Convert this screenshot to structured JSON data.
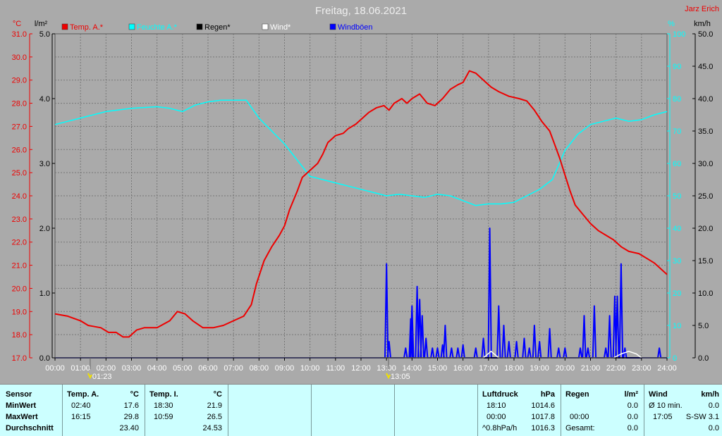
{
  "title": "Freitag, 18.06.2021",
  "station": "Jarz Erich",
  "axis_units": {
    "temp": "°C",
    "rain": "l/m²",
    "hum": "%",
    "wind": "km/h"
  },
  "legend": [
    {
      "label": "Temp. A.*",
      "color": "#ee0000"
    },
    {
      "label": "Feuchte A.*",
      "color": "#00ffff"
    },
    {
      "label": "Regen*",
      "color": "#000000"
    },
    {
      "label": "Wind*",
      "color": "#ffffff"
    },
    {
      "label": "Windböen",
      "color": "#0000ff"
    }
  ],
  "markers": [
    {
      "label": "01:23",
      "hour": 1.38
    },
    {
      "label": "13:05",
      "hour": 13.08
    }
  ],
  "chart_data": {
    "type": "line",
    "title": "Freitag, 18.06.2021",
    "x_label": "",
    "x_ticks": [
      "00:00",
      "01:00",
      "02:00",
      "03:00",
      "04:00",
      "05:00",
      "06:00",
      "07:00",
      "08:00",
      "09:00",
      "10:00",
      "11:00",
      "12:00",
      "13:00",
      "14:00",
      "15:00",
      "16:00",
      "17:00",
      "18:00",
      "19:00",
      "20:00",
      "21:00",
      "22:00",
      "23:00",
      "24:00"
    ],
    "x_range": [
      0,
      24
    ],
    "grid": true,
    "axes": {
      "temp": {
        "unit": "°C",
        "range": [
          17,
          31
        ],
        "ticks": [
          "17.0",
          "18.0",
          "19.0",
          "20.0",
          "21.0",
          "22.0",
          "23.0",
          "24.0",
          "25.0",
          "26.0",
          "27.0",
          "28.0",
          "29.0",
          "30.0",
          "31.0"
        ]
      },
      "rain": {
        "unit": "l/m²",
        "range": [
          0,
          5
        ],
        "ticks": [
          "0.0",
          "1.0",
          "2.0",
          "3.0",
          "4.0",
          "5.0"
        ]
      },
      "hum": {
        "unit": "%",
        "range": [
          0,
          100
        ],
        "ticks": [
          "0",
          "10",
          "20",
          "30",
          "40",
          "50",
          "60",
          "70",
          "80",
          "90",
          "100"
        ]
      },
      "wind": {
        "unit": "km/h",
        "range": [
          0,
          50
        ],
        "ticks": [
          "0.0",
          "5.0",
          "10.0",
          "15.0",
          "20.0",
          "25.0",
          "30.0",
          "35.0",
          "40.0",
          "45.0",
          "50.0"
        ]
      }
    },
    "series": [
      {
        "name": "Temp. A.*",
        "axis": "temp",
        "color": "#ee0000",
        "points": [
          [
            0,
            18.9
          ],
          [
            0.5,
            18.8
          ],
          [
            1,
            18.6
          ],
          [
            1.3,
            18.4
          ],
          [
            1.8,
            18.3
          ],
          [
            2.1,
            18.1
          ],
          [
            2.4,
            18.1
          ],
          [
            2.67,
            17.9
          ],
          [
            2.9,
            17.9
          ],
          [
            3.2,
            18.2
          ],
          [
            3.5,
            18.3
          ],
          [
            4,
            18.3
          ],
          [
            4.5,
            18.6
          ],
          [
            4.8,
            19.0
          ],
          [
            5.1,
            18.9
          ],
          [
            5.4,
            18.6
          ],
          [
            5.8,
            18.3
          ],
          [
            6.2,
            18.3
          ],
          [
            6.6,
            18.4
          ],
          [
            7,
            18.6
          ],
          [
            7.4,
            18.8
          ],
          [
            7.7,
            19.3
          ],
          [
            7.9,
            20.2
          ],
          [
            8.2,
            21.2
          ],
          [
            8.5,
            21.8
          ],
          [
            8.8,
            22.3
          ],
          [
            9.0,
            22.7
          ],
          [
            9.2,
            23.4
          ],
          [
            9.5,
            24.2
          ],
          [
            9.7,
            24.8
          ],
          [
            10,
            25.1
          ],
          [
            10.3,
            25.4
          ],
          [
            10.5,
            25.8
          ],
          [
            10.7,
            26.3
          ],
          [
            11,
            26.6
          ],
          [
            11.3,
            26.7
          ],
          [
            11.5,
            26.9
          ],
          [
            11.8,
            27.1
          ],
          [
            12,
            27.3
          ],
          [
            12.3,
            27.6
          ],
          [
            12.6,
            27.8
          ],
          [
            12.9,
            27.9
          ],
          [
            13.1,
            27.7
          ],
          [
            13.3,
            28.0
          ],
          [
            13.6,
            28.2
          ],
          [
            13.8,
            28.0
          ],
          [
            14.0,
            28.2
          ],
          [
            14.3,
            28.4
          ],
          [
            14.6,
            28.0
          ],
          [
            14.9,
            27.9
          ],
          [
            15.2,
            28.2
          ],
          [
            15.5,
            28.6
          ],
          [
            15.8,
            28.8
          ],
          [
            16,
            28.9
          ],
          [
            16.25,
            29.4
          ],
          [
            16.5,
            29.3
          ],
          [
            16.8,
            29.0
          ],
          [
            17.1,
            28.7
          ],
          [
            17.4,
            28.5
          ],
          [
            17.8,
            28.3
          ],
          [
            18.2,
            28.2
          ],
          [
            18.5,
            28.1
          ],
          [
            18.8,
            27.7
          ],
          [
            19.1,
            27.2
          ],
          [
            19.4,
            26.8
          ],
          [
            19.6,
            26.2
          ],
          [
            19.8,
            25.6
          ],
          [
            20,
            24.9
          ],
          [
            20.2,
            24.2
          ],
          [
            20.4,
            23.6
          ],
          [
            20.7,
            23.2
          ],
          [
            21,
            22.8
          ],
          [
            21.3,
            22.5
          ],
          [
            21.6,
            22.3
          ],
          [
            21.9,
            22.1
          ],
          [
            22.2,
            21.8
          ],
          [
            22.5,
            21.6
          ],
          [
            22.9,
            21.5
          ],
          [
            23.2,
            21.3
          ],
          [
            23.5,
            21.1
          ],
          [
            23.8,
            20.8
          ],
          [
            24,
            20.6
          ]
        ]
      },
      {
        "name": "Feuchte A.*",
        "axis": "hum",
        "color": "#00ffff",
        "points": [
          [
            0,
            72
          ],
          [
            1,
            74
          ],
          [
            2,
            76
          ],
          [
            3,
            77
          ],
          [
            4,
            77.5
          ],
          [
            4.5,
            77
          ],
          [
            5,
            76
          ],
          [
            5.5,
            78
          ],
          [
            6,
            79
          ],
          [
            6.5,
            79.5
          ],
          [
            7,
            79.5
          ],
          [
            7.5,
            79.5
          ],
          [
            8,
            74
          ],
          [
            8.5,
            70
          ],
          [
            9,
            66
          ],
          [
            9.5,
            61
          ],
          [
            10,
            56
          ],
          [
            10.5,
            55
          ],
          [
            11,
            54
          ],
          [
            11.5,
            53
          ],
          [
            12,
            52
          ],
          [
            12.5,
            51
          ],
          [
            13,
            50
          ],
          [
            13.5,
            50.5
          ],
          [
            14,
            50
          ],
          [
            14.5,
            49.5
          ],
          [
            15,
            50.5
          ],
          [
            15.5,
            50
          ],
          [
            16,
            48.5
          ],
          [
            16.5,
            47
          ],
          [
            17,
            47.5
          ],
          [
            17.5,
            47.5
          ],
          [
            18,
            48
          ],
          [
            18.5,
            50
          ],
          [
            19,
            52
          ],
          [
            19.5,
            55
          ],
          [
            20,
            64
          ],
          [
            20.5,
            69
          ],
          [
            21,
            72
          ],
          [
            21.5,
            73
          ],
          [
            22,
            74
          ],
          [
            22.5,
            73
          ],
          [
            23,
            73.5
          ],
          [
            23.5,
            75
          ],
          [
            24,
            76
          ]
        ]
      },
      {
        "name": "Regen*",
        "axis": "rain",
        "color": "#000000",
        "points": [
          [
            0,
            0
          ],
          [
            24,
            0
          ]
        ]
      },
      {
        "name": "Wind*",
        "axis": "wind",
        "color": "#ffffff",
        "points": [
          [
            0,
            0
          ],
          [
            16.8,
            0
          ],
          [
            17.1,
            1
          ],
          [
            17.4,
            0
          ],
          [
            21.9,
            0
          ],
          [
            22.2,
            0.6
          ],
          [
            22.5,
            1
          ],
          [
            22.8,
            0.6
          ],
          [
            23,
            0
          ],
          [
            24,
            0
          ]
        ]
      },
      {
        "name": "Windböen",
        "axis": "wind",
        "color": "#0000ff",
        "bursts": [
          [
            13.0,
            14.5
          ],
          [
            13.1,
            2.5
          ],
          [
            13.75,
            1.5
          ],
          [
            13.95,
            6
          ],
          [
            14.0,
            8
          ],
          [
            14.2,
            11
          ],
          [
            14.3,
            9
          ],
          [
            14.4,
            6.5
          ],
          [
            14.55,
            3
          ],
          [
            14.8,
            1.5
          ],
          [
            15.0,
            1.5
          ],
          [
            15.2,
            2
          ],
          [
            15.3,
            5
          ],
          [
            15.55,
            1.5
          ],
          [
            15.8,
            1.5
          ],
          [
            16.0,
            2
          ],
          [
            16.5,
            1.5
          ],
          [
            16.8,
            3
          ],
          [
            17.05,
            20
          ],
          [
            17.4,
            8
          ],
          [
            17.6,
            5
          ],
          [
            17.8,
            2.5
          ],
          [
            18.1,
            2.5
          ],
          [
            18.4,
            3
          ],
          [
            18.6,
            1.5
          ],
          [
            18.8,
            5
          ],
          [
            19.0,
            2.5
          ],
          [
            19.4,
            4.5
          ],
          [
            19.75,
            1.5
          ],
          [
            20.0,
            1.5
          ],
          [
            20.6,
            1.5
          ],
          [
            20.75,
            6.5
          ],
          [
            20.9,
            1.5
          ],
          [
            21.15,
            8
          ],
          [
            21.6,
            1.5
          ],
          [
            21.75,
            6.5
          ],
          [
            21.95,
            9.5
          ],
          [
            22.05,
            9.5
          ],
          [
            22.2,
            14.5
          ],
          [
            22.35,
            1.5
          ],
          [
            23.7,
            1.5
          ]
        ]
      }
    ]
  },
  "table": {
    "sensor": {
      "header": "Sensor",
      "rows": [
        "MinWert",
        "MaxWert",
        "Durchschnitt"
      ]
    },
    "temp_a": {
      "header": "Temp. A.",
      "unit": "°C",
      "min_time": "02:40",
      "min": "17.6",
      "max_time": "16:15",
      "max": "29.8",
      "avg": "23.40"
    },
    "temp_i": {
      "header": "Temp. I.",
      "unit": "°C",
      "min_time": "18:30",
      "min": "21.9",
      "max_time": "10:59",
      "max": "26.5",
      "avg": "24.53"
    },
    "pressure": {
      "header": "Luftdruck",
      "unit": "hPa",
      "min_time": "18:10",
      "min": "1014.6",
      "max_time": "00:00",
      "max": "1017.8",
      "avg_label": "^0.8hPa/h",
      "avg": "1016.3"
    },
    "rain": {
      "header": "Regen",
      "unit": "l/m²",
      "r2_time": "00:00",
      "r2": "0.0",
      "r1": "0.0",
      "total_label": "Gesamt:",
      "total": "0.0"
    },
    "wind": {
      "header": "Wind",
      "unit": "km/h",
      "avg_label": "Ø 10 min.",
      "avg": "0.0",
      "max_time": "17:05",
      "max": "S-SW 3.1",
      "r3": "0.0"
    }
  }
}
